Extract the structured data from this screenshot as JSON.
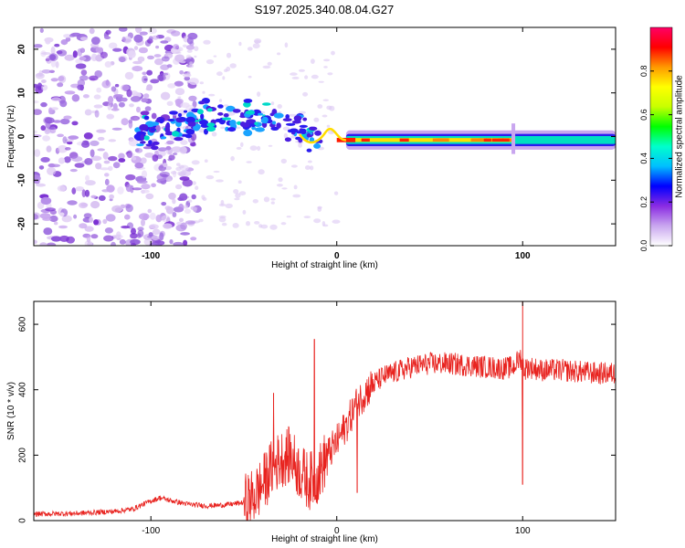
{
  "title": "S197.2025.340.08.04.G27",
  "chart_data": [
    {
      "type": "heatmap",
      "name": "spectrogram",
      "xlabel": "Height of straight line (km)",
      "ylabel": "Frequency (Hz)",
      "xlim": [
        -163,
        150
      ],
      "ylim": [
        -25,
        25
      ],
      "xticks": [
        -100,
        0,
        100
      ],
      "yticks": [
        -20,
        -10,
        0,
        10,
        20
      ],
      "colorbar": {
        "label": "Normalized spectral amplitude",
        "range": [
          0,
          1
        ],
        "ticks": [
          "0.0",
          "0.2",
          "0.4",
          "0.6",
          "0.8"
        ],
        "tick_values": [
          0,
          0.2,
          0.4,
          0.6,
          0.8
        ],
        "colors": [
          "#ffffff",
          "#c9a6ef",
          "#8a2be2",
          "#0000ff",
          "#00bfff",
          "#00ffcc",
          "#00ff00",
          "#c8ff00",
          "#ffff00",
          "#ff9900",
          "#ff0000",
          "#ff0066"
        ]
      },
      "features": {
        "carrier_start_km": 5,
        "carrier_end_km": 150,
        "carrier_freq_hz": -0.8,
        "peak_segment_km": [
          5,
          95
        ],
        "transition_start_km": -90,
        "noise_region_km": [
          -163,
          -105
        ]
      }
    },
    {
      "type": "line",
      "name": "snr",
      "xlabel": "Height of straight line (km)",
      "ylabel": "SNR (10 * v/v)",
      "xlim": [
        -163,
        150
      ],
      "ylim": [
        0,
        670
      ],
      "xticks": [
        -100,
        0,
        100
      ],
      "yticks": [
        0,
        200,
        400,
        600
      ],
      "color": "#e8231f",
      "series": [
        {
          "name": "SNR",
          "x": [
            -163,
            -140,
            -120,
            -110,
            -100,
            -95,
            -90,
            -80,
            -70,
            -60,
            -50,
            -45,
            -40,
            -35,
            -30,
            -25,
            -20,
            -15,
            -10,
            -5,
            0,
            5,
            10,
            15,
            20,
            25,
            30,
            40,
            50,
            60,
            70,
            80,
            90,
            95,
            99,
            101,
            103,
            110,
            120,
            130,
            140,
            150
          ],
          "y": [
            20,
            22,
            28,
            35,
            60,
            70,
            62,
            50,
            45,
            48,
            55,
            70,
            110,
            160,
            190,
            200,
            150,
            120,
            140,
            200,
            240,
            290,
            350,
            390,
            420,
            440,
            450,
            470,
            480,
            480,
            475,
            470,
            465,
            470,
            500,
            460,
            470,
            460,
            460,
            455,
            450,
            450
          ]
        }
      ],
      "spikes": [
        {
          "x": -34,
          "y": 390
        },
        {
          "x": -12,
          "y": 555
        },
        {
          "x": 11,
          "y": 85
        },
        {
          "x": 100,
          "y": 670
        },
        {
          "x": 100,
          "y": 110
        }
      ]
    }
  ]
}
